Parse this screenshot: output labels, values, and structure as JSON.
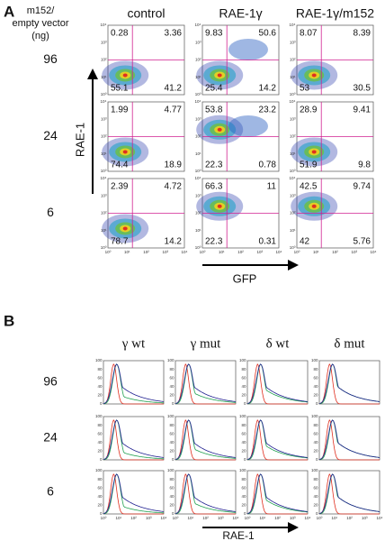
{
  "panel_a": {
    "label": "A",
    "row_header": [
      "m152/",
      "empty vector",
      "(ng)"
    ],
    "columns": [
      "control",
      "RAE-1γ",
      "RAE-1γ/m152"
    ],
    "rows": [
      {
        "label": "96",
        "quadrants": [
          [
            0.28,
            3.36,
            55.1,
            41.2
          ],
          [
            9.83,
            50.6,
            25.4,
            14.2
          ],
          [
            8.07,
            8.39,
            53,
            30.5
          ]
        ]
      },
      {
        "label": "24",
        "quadrants": [
          [
            1.99,
            4.77,
            74.4,
            18.9
          ],
          [
            53.8,
            23.2,
            22.3,
            0.78
          ],
          [
            28.9,
            9.41,
            51.9,
            9.8
          ]
        ]
      },
      {
        "label": "6",
        "quadrants": [
          [
            2.39,
            4.72,
            78.7,
            14.2
          ],
          [
            66.3,
            11,
            22.3,
            0.31
          ],
          [
            42.5,
            9.74,
            42,
            5.76
          ]
        ]
      }
    ],
    "y_axis": "RAE-1",
    "x_axis": "GFP",
    "ticks": [
      "10⁰",
      "10¹",
      "10²",
      "10³",
      "10⁴"
    ]
  },
  "panel_b": {
    "label": "B",
    "columns": [
      "γ wt",
      "γ mut",
      "δ wt",
      "δ mut"
    ],
    "rows": [
      "96",
      "24",
      "6"
    ],
    "x_axis": "RAE-1",
    "yticks": [
      0,
      20,
      40,
      60,
      80,
      100
    ],
    "xticks": [
      "10⁰",
      "10¹",
      "10²",
      "10³",
      "10⁴"
    ]
  }
}
